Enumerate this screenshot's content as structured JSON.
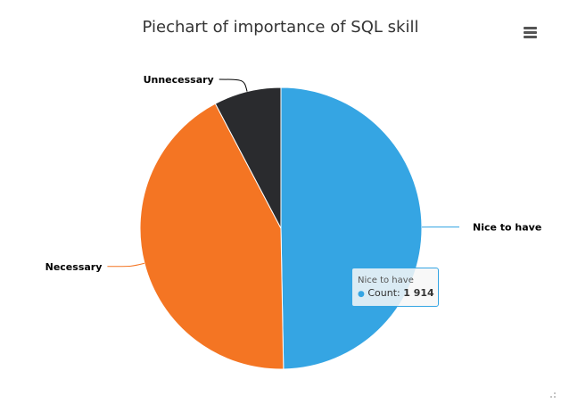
{
  "chart": {
    "title": "Piechart of importance of SQL skill",
    "menu_icon": "hamburger-menu-icon",
    "resize_icon": "resize-grip-icon"
  },
  "tooltip": {
    "name": "Nice to have",
    "label": "Count",
    "value": "1 914",
    "color": "#35a5e3"
  },
  "chart_data": {
    "type": "pie",
    "title": "Piechart of importance of SQL skill",
    "slices": [
      {
        "name": "Nice to have",
        "value": 1914,
        "color": "#35a5e3"
      },
      {
        "name": "Necessary",
        "value": 1639,
        "color": "#f47523"
      },
      {
        "name": "Unnecessary",
        "value": 297,
        "color": "#2a2b2e"
      }
    ],
    "legend": "none",
    "data_labels": "outside with connectors"
  }
}
